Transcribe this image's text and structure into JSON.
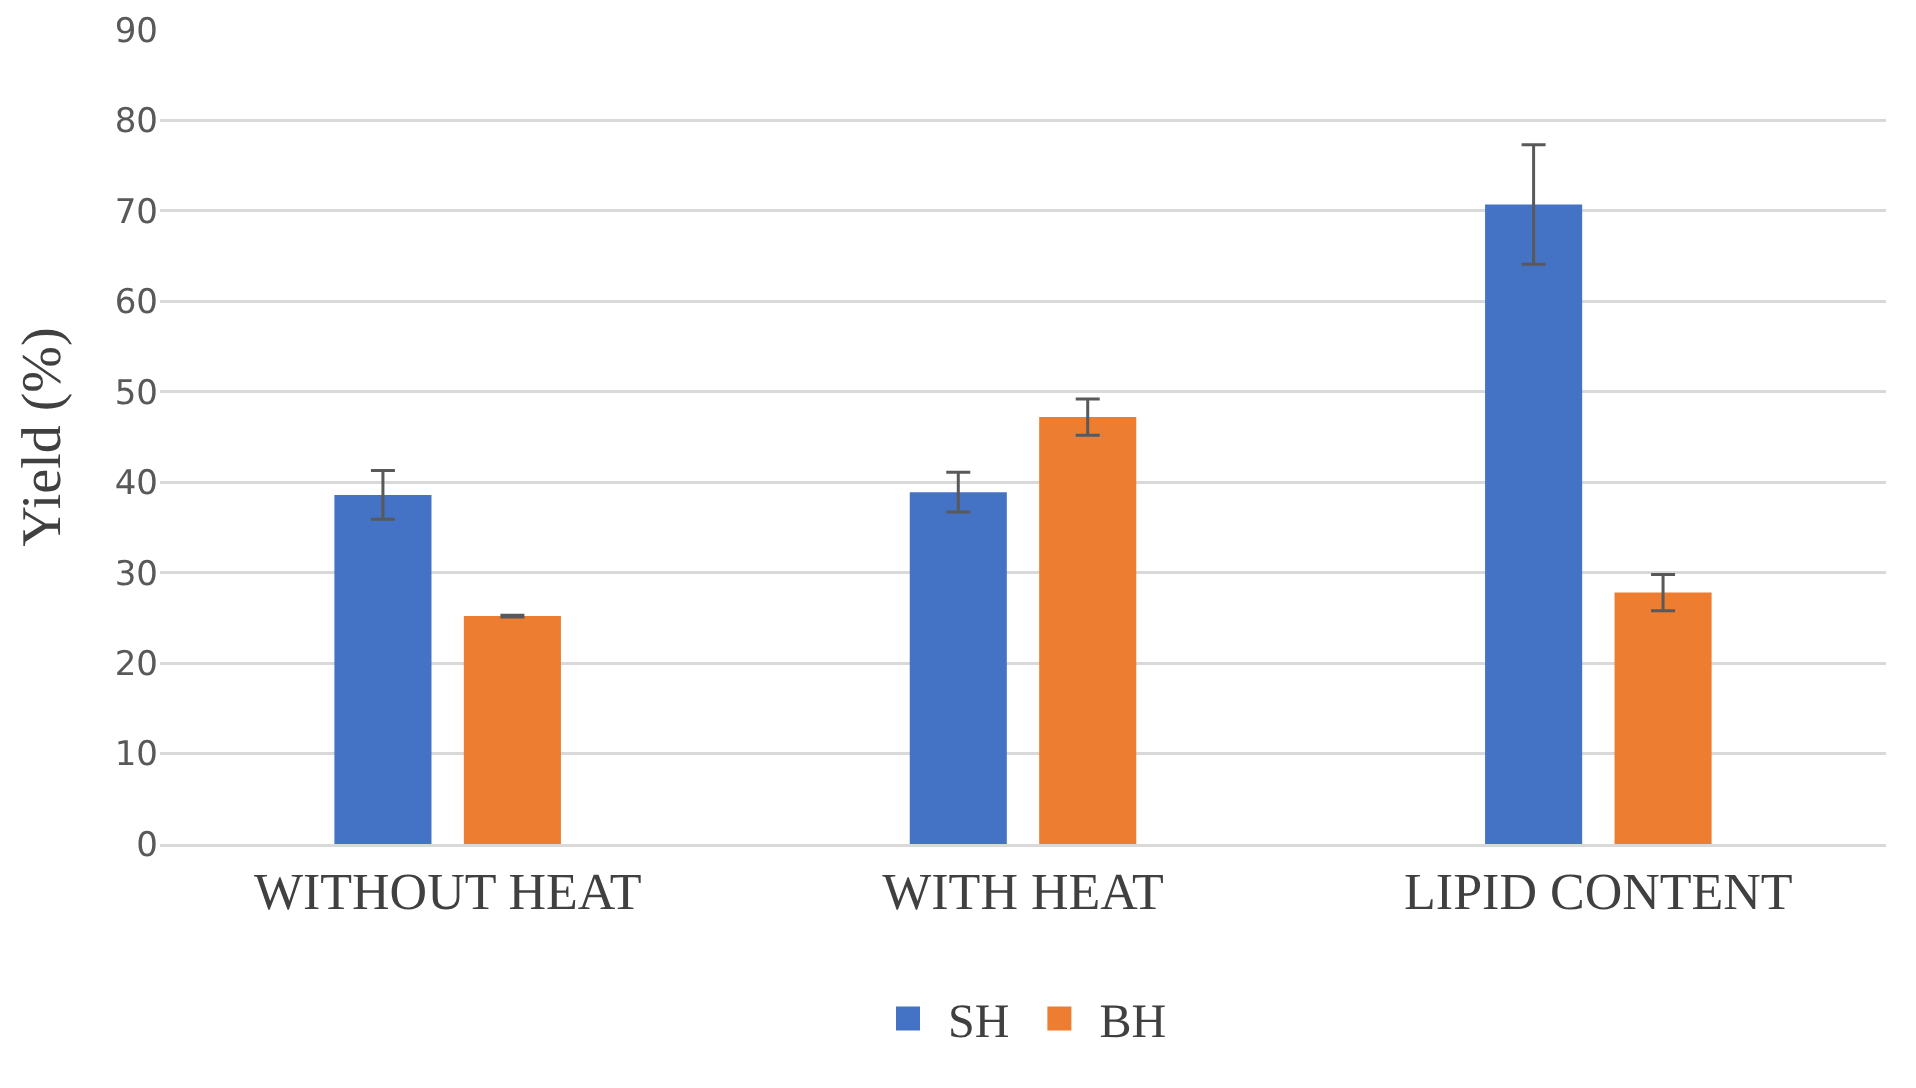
{
  "chart_data": {
    "type": "bar",
    "ylabel": "Yield (%)",
    "categories": [
      "WITHOUT HEAT",
      "WITH HEAT",
      "LIPID CONTENT"
    ],
    "series": [
      {
        "name": "SH",
        "color": "#4472c4",
        "values": [
          38.6,
          38.9,
          70.7
        ],
        "errors": [
          2.7,
          2.2,
          6.6
        ]
      },
      {
        "name": "BH",
        "color": "#ed7d31",
        "values": [
          25.2,
          47.2,
          27.8
        ],
        "errors": [
          0.1,
          2.0,
          2.0
        ]
      }
    ],
    "ylim": [
      0,
      90
    ],
    "yticks": [
      0,
      10,
      20,
      30,
      40,
      50,
      60,
      70,
      80,
      90
    ],
    "grid": "y",
    "legend": "bottom"
  }
}
